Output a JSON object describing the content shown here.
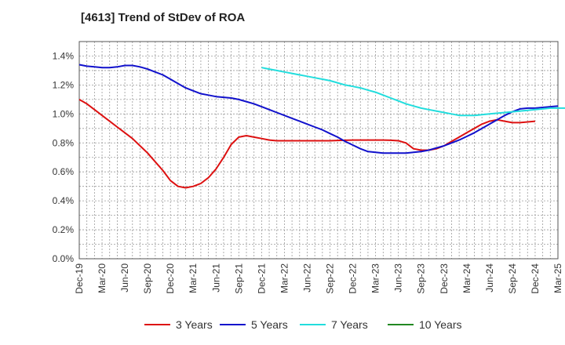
{
  "title": "[4613]  Trend of StDev of ROA",
  "chart_data": {
    "type": "line",
    "title": "[4613]  Trend of StDev of ROA",
    "xlabel": "",
    "ylabel": "",
    "x_tick_labels": [
      "Dec-19",
      "Mar-20",
      "Jun-20",
      "Sep-20",
      "Dec-20",
      "Mar-21",
      "Jun-21",
      "Sep-21",
      "Dec-21",
      "Mar-22",
      "Jun-22",
      "Sep-22",
      "Dec-22",
      "Mar-23",
      "Jun-23",
      "Sep-23",
      "Dec-23",
      "Mar-24",
      "Jun-24",
      "Sep-24",
      "Dec-24",
      "Mar-25"
    ],
    "y_tick_labels": [
      "0.0%",
      "0.2%",
      "0.4%",
      "0.6%",
      "0.8%",
      "1.0%",
      "1.2%",
      "1.4%"
    ],
    "ylim": [
      0,
      1.5
    ],
    "grid": true,
    "legend_position": "bottom",
    "series": [
      {
        "name": "3 Years",
        "color": "#dd1111",
        "points": [
          [
            "Dec-19",
            1.1
          ],
          [
            "Jan-20",
            1.07
          ],
          [
            "Feb-20",
            1.03
          ],
          [
            "Mar-20",
            0.99
          ],
          [
            "Apr-20",
            0.95
          ],
          [
            "May-20",
            0.91
          ],
          [
            "Jun-20",
            0.87
          ],
          [
            "Jul-20",
            0.83
          ],
          [
            "Aug-20",
            0.78
          ],
          [
            "Sep-20",
            0.73
          ],
          [
            "Oct-20",
            0.67
          ],
          [
            "Nov-20",
            0.61
          ],
          [
            "Dec-20",
            0.54
          ],
          [
            "Jan-21",
            0.5
          ],
          [
            "Feb-21",
            0.49
          ],
          [
            "Mar-21",
            0.5
          ],
          [
            "Apr-21",
            0.52
          ],
          [
            "May-21",
            0.56
          ],
          [
            "Jun-21",
            0.62
          ],
          [
            "Jul-21",
            0.7
          ],
          [
            "Aug-21",
            0.79
          ],
          [
            "Sep-21",
            0.84
          ],
          [
            "Oct-21",
            0.85
          ],
          [
            "Nov-21",
            0.84
          ],
          [
            "Dec-21",
            0.83
          ],
          [
            "Jan-22",
            0.82
          ],
          [
            "Feb-22",
            0.815
          ],
          [
            "Mar-22",
            0.815
          ],
          [
            "Apr-22",
            0.815
          ],
          [
            "May-22",
            0.815
          ],
          [
            "Jun-22",
            0.815
          ],
          [
            "Jul-22",
            0.815
          ],
          [
            "Aug-22",
            0.815
          ],
          [
            "Sep-22",
            0.815
          ],
          [
            "Oct-22",
            0.817
          ],
          [
            "Nov-22",
            0.818
          ],
          [
            "Dec-22",
            0.82
          ],
          [
            "Jan-23",
            0.82
          ],
          [
            "Feb-23",
            0.82
          ],
          [
            "Mar-23",
            0.82
          ],
          [
            "Apr-23",
            0.82
          ],
          [
            "May-23",
            0.818
          ],
          [
            "Jun-23",
            0.815
          ],
          [
            "Jul-23",
            0.8
          ],
          [
            "Aug-23",
            0.76
          ],
          [
            "Sep-23",
            0.75
          ],
          [
            "Oct-23",
            0.75
          ],
          [
            "Nov-23",
            0.76
          ],
          [
            "Dec-23",
            0.78
          ],
          [
            "Jan-24",
            0.81
          ],
          [
            "Feb-24",
            0.84
          ],
          [
            "Mar-24",
            0.87
          ],
          [
            "Apr-24",
            0.9
          ],
          [
            "May-24",
            0.93
          ],
          [
            "Jun-24",
            0.95
          ],
          [
            "Jul-24",
            0.96
          ],
          [
            "Aug-24",
            0.95
          ],
          [
            "Sep-24",
            0.94
          ],
          [
            "Oct-24",
            0.94
          ],
          [
            "Nov-24",
            0.945
          ],
          [
            "Dec-24",
            0.95
          ]
        ]
      },
      {
        "name": "5 Years",
        "color": "#1111cc",
        "points": [
          [
            "Dec-19",
            1.34
          ],
          [
            "Jan-20",
            1.33
          ],
          [
            "Feb-20",
            1.325
          ],
          [
            "Mar-20",
            1.32
          ],
          [
            "Apr-20",
            1.32
          ],
          [
            "May-20",
            1.325
          ],
          [
            "Jun-20",
            1.335
          ],
          [
            "Jul-20",
            1.335
          ],
          [
            "Aug-20",
            1.325
          ],
          [
            "Sep-20",
            1.31
          ],
          [
            "Oct-20",
            1.29
          ],
          [
            "Nov-20",
            1.27
          ],
          [
            "Dec-20",
            1.24
          ],
          [
            "Jan-21",
            1.21
          ],
          [
            "Feb-21",
            1.18
          ],
          [
            "Mar-21",
            1.16
          ],
          [
            "Apr-21",
            1.14
          ],
          [
            "May-21",
            1.13
          ],
          [
            "Jun-21",
            1.12
          ],
          [
            "Jul-21",
            1.115
          ],
          [
            "Aug-21",
            1.11
          ],
          [
            "Sep-21",
            1.1
          ],
          [
            "Oct-21",
            1.085
          ],
          [
            "Nov-21",
            1.07
          ],
          [
            "Dec-21",
            1.05
          ],
          [
            "Jan-22",
            1.03
          ],
          [
            "Feb-22",
            1.01
          ],
          [
            "Mar-22",
            0.99
          ],
          [
            "Apr-22",
            0.97
          ],
          [
            "May-22",
            0.95
          ],
          [
            "Jun-22",
            0.93
          ],
          [
            "Jul-22",
            0.91
          ],
          [
            "Aug-22",
            0.89
          ],
          [
            "Sep-22",
            0.865
          ],
          [
            "Oct-22",
            0.84
          ],
          [
            "Nov-22",
            0.81
          ],
          [
            "Dec-22",
            0.785
          ],
          [
            "Jan-23",
            0.76
          ],
          [
            "Feb-23",
            0.74
          ],
          [
            "Mar-23",
            0.735
          ],
          [
            "Apr-23",
            0.73
          ],
          [
            "May-23",
            0.73
          ],
          [
            "Jun-23",
            0.73
          ],
          [
            "Jul-23",
            0.73
          ],
          [
            "Aug-23",
            0.735
          ],
          [
            "Sep-23",
            0.74
          ],
          [
            "Oct-23",
            0.75
          ],
          [
            "Nov-23",
            0.765
          ],
          [
            "Dec-23",
            0.78
          ],
          [
            "Jan-24",
            0.8
          ],
          [
            "Feb-24",
            0.82
          ],
          [
            "Mar-24",
            0.845
          ],
          [
            "Apr-24",
            0.87
          ],
          [
            "May-24",
            0.9
          ],
          [
            "Jun-24",
            0.93
          ],
          [
            "Jul-24",
            0.96
          ],
          [
            "Aug-24",
            0.99
          ],
          [
            "Sep-24",
            1.015
          ],
          [
            "Oct-24",
            1.035
          ],
          [
            "Nov-24",
            1.04
          ],
          [
            "Dec-24",
            1.04
          ],
          [
            "Jan-25",
            1.045
          ],
          [
            "Feb-25",
            1.05
          ],
          [
            "Mar-25",
            1.055
          ]
        ]
      },
      {
        "name": "7 Years",
        "color": "#22dddd",
        "points": [
          [
            "Dec-21",
            1.32
          ],
          [
            "Jan-22",
            1.31
          ],
          [
            "Feb-22",
            1.3
          ],
          [
            "Mar-22",
            1.29
          ],
          [
            "Apr-22",
            1.28
          ],
          [
            "May-22",
            1.27
          ],
          [
            "Jun-22",
            1.26
          ],
          [
            "Jul-22",
            1.25
          ],
          [
            "Aug-22",
            1.24
          ],
          [
            "Sep-22",
            1.23
          ],
          [
            "Oct-22",
            1.215
          ],
          [
            "Nov-22",
            1.2
          ],
          [
            "Dec-22",
            1.19
          ],
          [
            "Jan-23",
            1.18
          ],
          [
            "Feb-23",
            1.165
          ],
          [
            "Mar-23",
            1.15
          ],
          [
            "Apr-23",
            1.13
          ],
          [
            "May-23",
            1.11
          ],
          [
            "Jun-23",
            1.09
          ],
          [
            "Jul-23",
            1.07
          ],
          [
            "Aug-23",
            1.055
          ],
          [
            "Sep-23",
            1.04
          ],
          [
            "Oct-23",
            1.03
          ],
          [
            "Nov-23",
            1.02
          ],
          [
            "Dec-23",
            1.01
          ],
          [
            "Jan-24",
            1.0
          ],
          [
            "Feb-24",
            0.99
          ],
          [
            "Mar-24",
            0.99
          ],
          [
            "Apr-24",
            0.99
          ],
          [
            "May-24",
            0.995
          ],
          [
            "Jun-24",
            1.0
          ],
          [
            "Jul-24",
            1.005
          ],
          [
            "Aug-24",
            1.01
          ],
          [
            "Sep-24",
            1.015
          ],
          [
            "Oct-24",
            1.02
          ],
          [
            "Nov-24",
            1.025
          ],
          [
            "Dec-24",
            1.03
          ],
          [
            "Jan-25",
            1.035
          ],
          [
            "Feb-25",
            1.04
          ],
          [
            "Mar-25",
            1.04
          ],
          [
            "Apr-25",
            1.04
          ],
          [
            "May-25",
            1.035
          ],
          [
            "Jun-25",
            1.035
          ]
        ]
      },
      {
        "name": "10 Years",
        "color": "#228822",
        "points": []
      }
    ]
  }
}
